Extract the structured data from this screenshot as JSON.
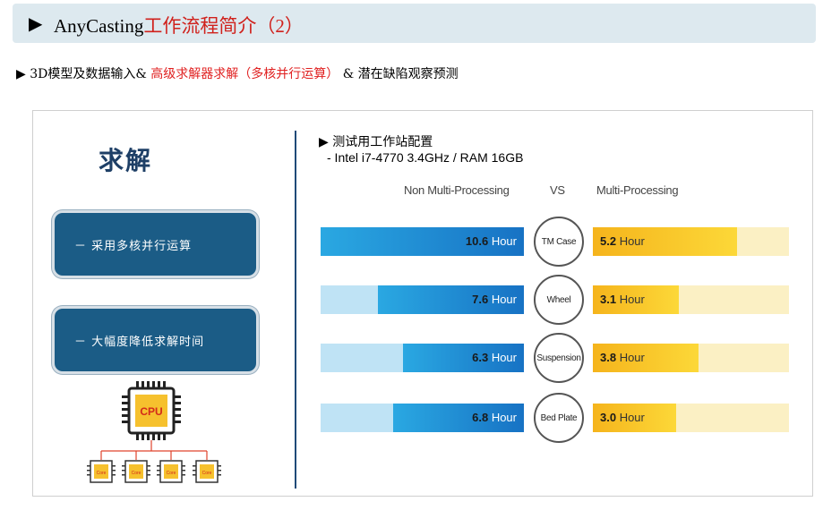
{
  "header": {
    "marker": "▶",
    "title_en": "AnyCasting",
    "title_cn": "工作流程简介（2）"
  },
  "subtitle": {
    "marker": "▶",
    "part1": "3D模型及数据输入&",
    "part2": "高级求解器求解（多核并行运算）",
    "part3": "& 潜在缺陷观察预测"
  },
  "left": {
    "title": "求解",
    "points": [
      "－ 采用多核并行运算",
      "－ 大幅度降低求解时间"
    ],
    "cpu_label": "CPU",
    "core_label": "Core"
  },
  "config": {
    "heading": "▶ 测试用工作站配置",
    "spec": "- Intel i7-4770 3.4GHz / RAM 16GB"
  },
  "chart_data": {
    "type": "bar",
    "columns": {
      "left": "Non Multi-Processing",
      "mid": "VS",
      "right": "Multi-Processing"
    },
    "unit": "Hour",
    "categories": [
      "TM Case",
      "Wheel",
      "Suspension",
      "Bed Plate"
    ],
    "series": [
      {
        "name": "Non Multi-Processing",
        "values": [
          10.6,
          7.6,
          6.3,
          6.8
        ]
      },
      {
        "name": "Multi-Processing",
        "values": [
          5.2,
          3.1,
          3.8,
          3.0
        ]
      }
    ],
    "xlim": [
      0,
      10.6
    ],
    "colors": {
      "left": "#1a84d0",
      "right": "#f7c02a"
    }
  }
}
